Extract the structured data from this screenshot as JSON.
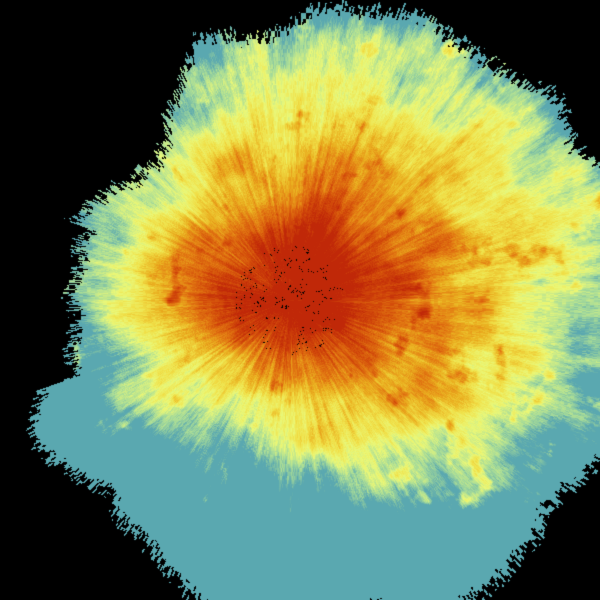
{
  "image": {
    "kind": "radar-reflectivity-scan",
    "background": "#000000",
    "colormap": [
      "#5aa8b0",
      "#a8dc98",
      "#eaf878",
      "#f0e048",
      "#eab020",
      "#e27812",
      "#d24a0a",
      "#c02808"
    ]
  }
}
